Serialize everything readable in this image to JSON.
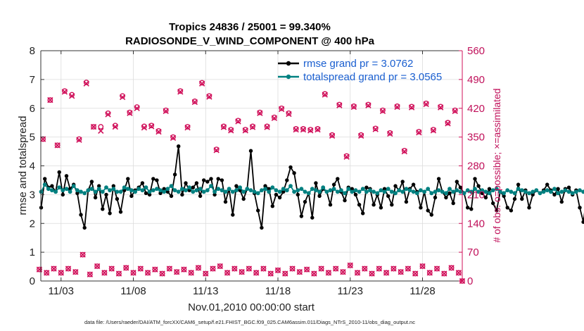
{
  "chart_data": {
    "type": "line",
    "title": "Tropics 24836 / 25001 = 99.340%",
    "subtitle": "RADIOSONDE_V_WIND_COMPONENT @ 400 hPa",
    "xlabel": "Nov.01,2010 00:00:00 start",
    "ylabel_left": "rmse and totalspread",
    "ylabel_right": "# of obs: o=possible; ×=assimilated",
    "footnote": "data file: /Users/raeder/DAI/ATM_forcXX/CAM6_setup/f.e21.FHIST_BGC.f09_025.CAM6assim.011/Diags_NTrS_2010-11/obs_diag_output.nc",
    "x_range": [
      1.6,
      30.75
    ],
    "ylim_left": [
      0,
      8
    ],
    "ylim_right": [
      0,
      560
    ],
    "x_ticks": [
      3,
      8,
      13,
      18,
      23,
      28
    ],
    "x_tick_labels": [
      "11/03",
      "11/08",
      "11/13",
      "11/18",
      "11/23",
      "11/28"
    ],
    "y_ticks_left": [
      0,
      1,
      2,
      3,
      4,
      5,
      6,
      7,
      8
    ],
    "y_tick_labels_left": [
      "0",
      "1",
      "2",
      "3",
      "4",
      "5",
      "6",
      "7",
      "8"
    ],
    "y_ticks_right": [
      0,
      70,
      140,
      210,
      280,
      350,
      420,
      490,
      560
    ],
    "y_tick_labels_right": [
      "0",
      "70",
      "140",
      "210",
      "280",
      "350",
      "420",
      "490",
      "560"
    ],
    "legend": {
      "position": "top-right",
      "entries": [
        {
          "label": "rmse grand pr = 3.0762",
          "color": "#000000"
        },
        {
          "label": "totalspread grand pr = 3.0565",
          "color": "#008080"
        }
      ]
    },
    "colors": {
      "rmse": "#000000",
      "spread": "#008080",
      "obs": "#d0105a"
    },
    "series": [
      {
        "name": "rmse",
        "axis": "left",
        "x_start": 1.625,
        "x_step": 0.25,
        "values": [
          2.55,
          3.55,
          3.25,
          3.3,
          3.1,
          3.78,
          3.0,
          3.65,
          3.2,
          3.35,
          3.05,
          2.3,
          1.85,
          3.15,
          3.45,
          2.9,
          3.3,
          2.5,
          3.0,
          2.35,
          3.3,
          2.85,
          2.4,
          3.15,
          3.55,
          2.95,
          3.15,
          3.25,
          3.4,
          3.05,
          3.0,
          3.55,
          3.5,
          3.05,
          3.2,
          3.1,
          2.95,
          3.7,
          4.68,
          3.0,
          3.4,
          3.15,
          3.25,
          3.4,
          2.95,
          3.5,
          3.45,
          3.55,
          3.0,
          3.55,
          3.5,
          2.75,
          3.2,
          2.3,
          3.3,
          3.15,
          2.85,
          3.2,
          4.52,
          3.05,
          2.45,
          1.85,
          3.3,
          3.2,
          2.6,
          3.0,
          2.9,
          3.1,
          3.5,
          3.95,
          3.75,
          3.0,
          2.25,
          2.75,
          3.05,
          2.2,
          3.4,
          2.95,
          3.2,
          3.1,
          2.65,
          3.35,
          3.55,
          3.1,
          2.8,
          3.25,
          3.2,
          3.0,
          2.65,
          2.35,
          3.25,
          3.2,
          2.65,
          3.0,
          2.55,
          3.2,
          2.95,
          2.65,
          3.3,
          3.15,
          3.45,
          2.75,
          3.2,
          3.35,
          3.1,
          2.55,
          3.1,
          2.45,
          2.3,
          2.9,
          3.55,
          3.1,
          2.9,
          3.05,
          2.7,
          3.45,
          3.25,
          3.05,
          2.55,
          2.5,
          3.55,
          3.3,
          3.05,
          2.9,
          3.2,
          2.7,
          2.45,
          3.1,
          2.95,
          2.55,
          2.45,
          2.85,
          3.35,
          2.85,
          3.15,
          2.55,
          3.0,
          3.15,
          3.05,
          3.15,
          3.35,
          3.15,
          3.0,
          3.2,
          2.75,
          3.2,
          3.25,
          3.0,
          3.15,
          2.55,
          2.05,
          3.0,
          2.25,
          2.55,
          3.05,
          3.25,
          2.8,
          3.25,
          3.1,
          2.9,
          2.8,
          3.0,
          3.0,
          3.1,
          2.65,
          2.95,
          3.15,
          3.25,
          2.25,
          3.3,
          3.0,
          2.65,
          3.15,
          2.95,
          2.55,
          3.2,
          3.05,
          2.65,
          2.4,
          3.25,
          3.15,
          2.55,
          3.15,
          2.6,
          3.35,
          3.05,
          3.0,
          3.1,
          3.05,
          3.15,
          2.75,
          2.95,
          3.0,
          2.9,
          2.75,
          3.15,
          3.05,
          3.15,
          2.25,
          2.8,
          3.15,
          2.85,
          3.0,
          2.7,
          3.05,
          3.35,
          3.2,
          2.55,
          2.9,
          3.0,
          2.95,
          3.0,
          3.1,
          2.95,
          2.65,
          3.05,
          2.7,
          3.0,
          2.45,
          2.65,
          2.85,
          3.0,
          2.35,
          2.8,
          2.95,
          3.0,
          2.85,
          3.1,
          2.9,
          2.8,
          3.0,
          2.95,
          2.75,
          3.15,
          2.8,
          3.05,
          2.75,
          3.2,
          3.0,
          2.95,
          2.7,
          2.9,
          3.1,
          2.45,
          2.95,
          3.05,
          3.15,
          2.55,
          2.85,
          3.0,
          3.05,
          2.95,
          2.85,
          3.15,
          2.95,
          3.2,
          3.05,
          2.75,
          3.0,
          2.85,
          2.6,
          2.95,
          3.1,
          3.05,
          2.85,
          2.3,
          3.05,
          3.2,
          2.95,
          2.7,
          3.0,
          2.9,
          3.1,
          2.65,
          3.0,
          2.55,
          2.8,
          3.1,
          2.9,
          2.6,
          3.0,
          2.8,
          2.85,
          2.95,
          2.75,
          3.0,
          1.95,
          2.95,
          2.8,
          3.05,
          2.85,
          3.05,
          2.7,
          3.0,
          2.8,
          3.05,
          2.85
        ]
      },
      {
        "name": "totalspread",
        "axis": "left",
        "x_start": 1.625,
        "x_step": 0.25,
        "values": [
          3.1,
          3.35,
          3.2,
          3.15,
          3.1,
          3.25,
          3.15,
          3.2,
          3.1,
          3.3,
          3.15,
          3.1,
          3.05,
          3.15,
          3.2,
          3.1,
          3.2,
          3.1,
          3.25,
          3.15,
          3.2,
          3.1,
          3.1,
          3.25,
          3.2,
          3.15,
          3.1,
          3.2,
          3.15,
          3.25,
          3.1,
          3.15,
          3.2,
          3.15,
          3.1,
          3.2,
          3.3,
          3.15,
          3.1,
          3.2,
          3.15,
          3.25,
          3.1,
          3.15,
          3.2,
          3.1,
          3.15,
          3.3,
          3.1,
          3.2,
          3.15,
          3.1,
          3.2,
          3.1,
          3.15,
          3.25,
          3.1,
          3.2,
          3.15,
          3.1,
          3.05,
          3.15,
          3.2,
          3.1,
          3.25,
          3.15,
          3.1,
          3.2,
          3.15,
          3.3,
          3.1,
          3.15,
          3.2,
          3.1,
          3.05,
          3.2,
          3.15,
          3.1,
          3.25,
          3.1,
          3.15,
          3.2,
          3.1,
          3.15,
          3.05,
          3.2,
          3.1,
          3.15,
          3.1,
          3.2,
          3.1,
          3.15,
          3.1,
          3.05,
          3.15,
          3.1,
          3.2,
          3.1,
          3.05,
          3.15,
          3.1,
          3.2,
          3.15,
          3.1,
          3.05,
          3.15,
          3.1,
          3.2,
          3.05,
          3.1,
          3.15,
          3.1,
          3.05,
          3.2,
          3.1,
          3.15,
          3.1,
          3.05,
          3.15,
          3.1,
          3.2,
          3.1,
          3.15,
          3.1,
          3.05,
          3.15,
          3.2,
          3.1,
          3.05,
          3.15,
          3.1,
          3.05,
          3.2,
          3.15,
          3.1,
          3.05,
          3.1,
          3.15,
          3.05,
          3.1,
          3.15,
          3.1,
          3.2,
          3.05,
          3.1,
          3.15,
          3.1,
          3.05,
          3.1,
          3.15,
          3.1,
          3.05,
          3.2,
          3.1,
          3.05,
          3.1,
          3.15,
          3.05,
          3.1,
          3.2,
          3.1,
          3.05,
          3.1,
          3.15,
          3.05,
          3.1,
          3.15,
          3.1,
          3.05,
          3.1,
          3.15,
          3.1,
          3.05,
          3.1,
          3.15,
          3.05,
          3.1,
          3.1,
          3.15,
          3.05,
          3.1,
          3.15,
          3.1,
          3.05,
          3.1,
          3.15,
          3.1,
          3.05,
          3.1,
          3.15,
          3.05,
          3.1,
          3.1,
          3.15,
          3.05,
          3.1,
          3.15,
          3.1,
          3.05,
          3.1,
          3.1,
          3.15,
          3.05,
          3.1,
          3.15,
          3.1,
          3.05,
          3.1,
          3.1,
          3.15,
          3.05,
          3.1,
          3.15,
          3.1,
          3.05,
          3.1,
          3.15,
          3.05,
          3.1,
          3.1,
          3.15,
          3.05,
          3.1,
          3.15,
          3.05,
          3.1,
          3.1,
          3.15,
          3.05,
          3.1,
          3.15,
          3.1,
          3.05,
          3.1,
          3.1,
          3.15,
          3.05,
          3.1,
          3.15,
          3.1,
          3.05,
          3.1,
          3.15,
          3.1,
          3.05,
          3.1,
          3.15,
          3.05,
          3.1,
          3.1,
          3.15,
          3.05,
          3.1,
          3.15,
          3.1,
          3.05,
          3.1,
          3.1,
          3.15,
          3.05,
          3.1,
          3.15,
          3.1,
          3.05,
          3.1,
          3.1,
          3.15,
          3.05,
          3.1,
          3.15,
          3.1,
          3.05,
          3.1,
          3.15,
          3.05,
          3.1,
          3.1,
          3.15,
          3.05,
          3.1,
          3.15,
          3.1,
          3.05,
          3.1,
          3.1,
          3.15,
          3.05,
          3.1
        ]
      },
      {
        "name": "obs possible (00Z/12Z large counts)",
        "axis": "right",
        "marker": "circle",
        "x": [
          1.75,
          2.25,
          2.75,
          3.25,
          3.75,
          4.25,
          4.75,
          5.25,
          5.75,
          6.25,
          6.75,
          7.25,
          7.75,
          8.25,
          8.75,
          9.25,
          9.75,
          10.25,
          10.75,
          11.25,
          11.75,
          12.25,
          12.75,
          13.25,
          13.75,
          14.25,
          14.75,
          15.25,
          15.75,
          16.25,
          16.75,
          17.25,
          17.75,
          18.25,
          18.75,
          19.25,
          19.75,
          20.25,
          20.75,
          21.25,
          21.75,
          22.25,
          22.75,
          23.25,
          23.75,
          24.25,
          24.75,
          25.25,
          25.75,
          26.25,
          26.75,
          27.25,
          27.75,
          28.25,
          28.75,
          29.25,
          29.75,
          30.25
        ],
        "values": [
          345,
          440,
          330,
          462,
          453,
          345,
          483,
          375,
          375,
          408,
          378,
          450,
          410,
          423,
          376,
          378,
          365,
          415,
          350,
          462,
          375,
          437,
          482,
          450,
          320,
          376,
          368,
          390,
          368,
          376,
          410,
          376,
          398,
          420,
          408,
          370,
          370,
          368,
          370,
          455,
          355,
          429,
          304,
          425,
          355,
          429,
          371,
          415,
          360,
          425,
          317,
          424,
          363,
          432,
          368,
          424,
          385,
          415
        ]
      },
      {
        "name": "obs assimilated (00Z/12Z large counts)",
        "axis": "right",
        "marker": "x",
        "x": [
          1.75,
          2.25,
          2.75,
          3.25,
          3.75,
          4.25,
          4.75,
          5.25,
          5.75,
          6.25,
          6.75,
          7.25,
          7.75,
          8.25,
          8.75,
          9.25,
          9.75,
          10.25,
          10.75,
          11.25,
          11.75,
          12.25,
          12.75,
          13.25,
          13.75,
          14.25,
          14.75,
          15.25,
          15.75,
          16.25,
          16.75,
          17.25,
          17.75,
          18.25,
          18.75,
          19.25,
          19.75,
          20.25,
          20.75,
          21.25,
          21.75,
          22.25,
          22.75,
          23.25,
          23.75,
          24.25,
          24.75,
          25.25,
          25.75,
          26.25,
          26.75,
          27.25,
          27.75,
          28.25,
          28.75,
          29.25,
          29.75,
          30.25
        ],
        "values": [
          345,
          440,
          330,
          460,
          450,
          343,
          480,
          375,
          365,
          405,
          375,
          447,
          408,
          420,
          373,
          376,
          363,
          413,
          348,
          460,
          373,
          435,
          480,
          448,
          318,
          374,
          366,
          388,
          366,
          374,
          408,
          374,
          396,
          418,
          406,
          368,
          368,
          366,
          368,
          453,
          353,
          427,
          302,
          423,
          353,
          427,
          369,
          413,
          358,
          423,
          315,
          422,
          361,
          430,
          366,
          422,
          383,
          413
        ]
      },
      {
        "name": "obs possible (06Z/18Z small counts)",
        "axis": "right",
        "marker": "circle",
        "x": [
          1.5,
          2.0,
          2.5,
          3.0,
          3.5,
          4.0,
          4.5,
          5.0,
          5.5,
          6.0,
          6.5,
          7.0,
          7.5,
          8.0,
          8.5,
          9.0,
          9.5,
          10.0,
          10.5,
          11.0,
          11.5,
          12.0,
          12.5,
          13.0,
          13.5,
          14.0,
          14.5,
          15.0,
          15.5,
          16.0,
          16.5,
          17.0,
          17.5,
          18.0,
          18.5,
          19.0,
          19.5,
          20.0,
          20.5,
          21.0,
          21.5,
          22.0,
          22.5,
          23.0,
          23.5,
          24.0,
          24.5,
          25.0,
          25.5,
          26.0,
          26.5,
          27.0,
          27.5,
          28.0,
          28.5,
          29.0,
          29.5,
          30.0,
          30.5,
          30.75
        ],
        "values": [
          28,
          20,
          30,
          20,
          30,
          22,
          64,
          16,
          36,
          20,
          30,
          18,
          32,
          20,
          30,
          20,
          28,
          18,
          30,
          22,
          28,
          20,
          32,
          18,
          30,
          36,
          20,
          30,
          22,
          30,
          20,
          30,
          18,
          26,
          18,
          30,
          22,
          28,
          18,
          30,
          20,
          30,
          22,
          38,
          20,
          30,
          18,
          30,
          20,
          30,
          22,
          30,
          18,
          36,
          20,
          30,
          18,
          32,
          20,
          0
        ]
      }
    ]
  }
}
